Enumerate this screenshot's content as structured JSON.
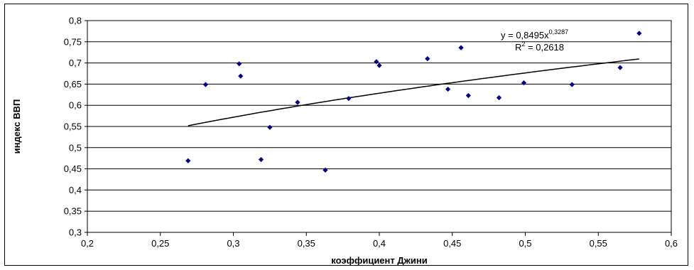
{
  "chart_data": {
    "type": "scatter",
    "title": "",
    "xlabel": "коэффициент Джини",
    "ylabel": "индекс ВВП",
    "xlim": [
      0.2,
      0.6
    ],
    "ylim": [
      0.3,
      0.8
    ],
    "x_ticks": [
      "0,2",
      "0,25",
      "0,3",
      "0,35",
      "0,4",
      "0,45",
      "0,5",
      "0,55",
      "0,6"
    ],
    "y_ticks": [
      "0,3",
      "0,35",
      "0,4",
      "0,45",
      "0,5",
      "0,55",
      "0,6",
      "0,65",
      "0,7",
      "0,75",
      "0,8"
    ],
    "grid": "horizontal",
    "marker_color": "#00007f",
    "points": [
      {
        "x": 0.269,
        "y": 0.469
      },
      {
        "x": 0.281,
        "y": 0.649
      },
      {
        "x": 0.304,
        "y": 0.698
      },
      {
        "x": 0.305,
        "y": 0.669
      },
      {
        "x": 0.319,
        "y": 0.472
      },
      {
        "x": 0.325,
        "y": 0.548
      },
      {
        "x": 0.344,
        "y": 0.607
      },
      {
        "x": 0.363,
        "y": 0.447
      },
      {
        "x": 0.379,
        "y": 0.616
      },
      {
        "x": 0.398,
        "y": 0.703
      },
      {
        "x": 0.4,
        "y": 0.694
      },
      {
        "x": 0.433,
        "y": 0.71
      },
      {
        "x": 0.447,
        "y": 0.638
      },
      {
        "x": 0.456,
        "y": 0.736
      },
      {
        "x": 0.461,
        "y": 0.623
      },
      {
        "x": 0.482,
        "y": 0.618
      },
      {
        "x": 0.499,
        "y": 0.653
      },
      {
        "x": 0.532,
        "y": 0.649
      },
      {
        "x": 0.565,
        "y": 0.689
      },
      {
        "x": 0.578,
        "y": 0.77
      }
    ],
    "trendline": {
      "type": "power",
      "a": 0.8495,
      "b": 0.3287,
      "x_range": [
        0.269,
        0.578
      ],
      "equation_prefix": "y = 0,8495x",
      "equation_exponent": "0,3287",
      "r2_prefix": "R",
      "r2_exponent": "2",
      "r2_suffix": " = 0,2618"
    }
  }
}
